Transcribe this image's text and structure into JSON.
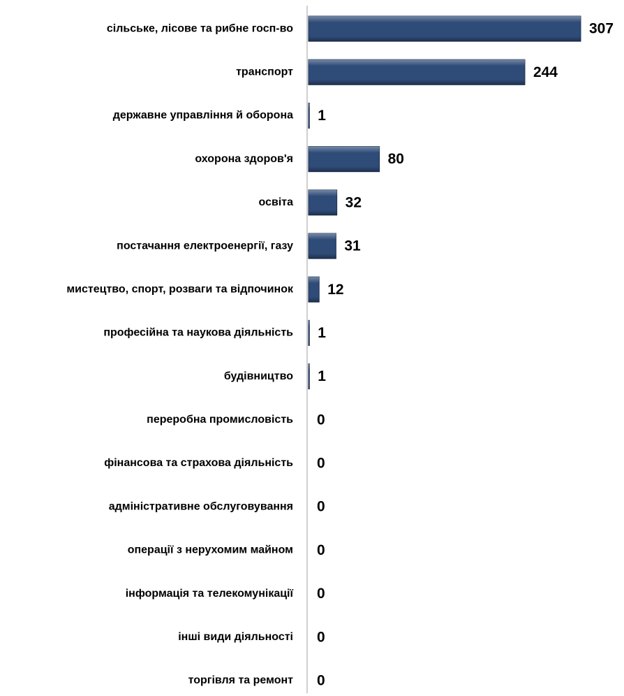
{
  "chart_data": {
    "type": "bar",
    "orientation": "horizontal",
    "categories": [
      "сільське, лісове та рибне госп-во",
      "транспорт",
      "державне управління й оборона",
      "охорона здоров'я",
      "освіта",
      "постачання електроенергії, газу",
      "мистецтво, спорт, розваги та відпочинок",
      "професійна та наукова діяльність",
      "будівництво",
      "переробна промисловість",
      "фінансова та страхова діяльність",
      "адміністративне обслуговування",
      "операції з нерухомим майном",
      "інформація та телекомунікації",
      "інші види діяльності",
      "торгівля та ремонт"
    ],
    "values": [
      307,
      244,
      1,
      80,
      32,
      31,
      12,
      1,
      1,
      0,
      0,
      0,
      0,
      0,
      0,
      0
    ],
    "color": "#2f4b78"
  }
}
